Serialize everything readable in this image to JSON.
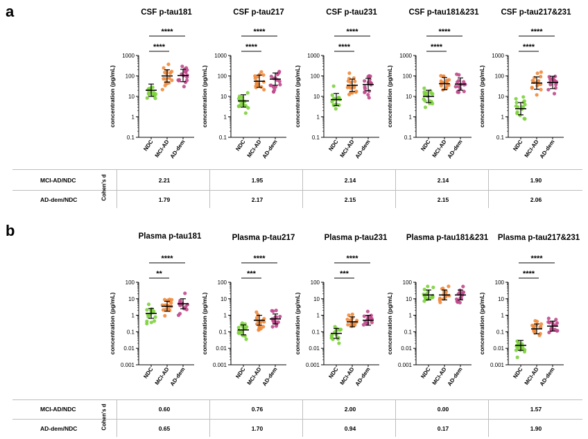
{
  "panels": [
    {
      "letter": "a"
    },
    {
      "letter": "b"
    }
  ],
  "cohens_d_label": "Cohen's d",
  "colors": {
    "NDC": "#7dd23c",
    "MCI-AD": "#f08a3c",
    "AD-dem": "#c04a8c"
  },
  "chart_data": [
    {
      "type": "scatter",
      "title": "CSF p-tau181",
      "ylabel": "concentration (pg/mL)",
      "yscale": "log",
      "ylim": [
        0.1,
        1000
      ],
      "ytick_labels": [
        "0.1",
        "1",
        "10",
        "100",
        "1000"
      ],
      "categories": [
        "NDC",
        "MCI-AD",
        "AD-dem"
      ],
      "medians": [
        20,
        100,
        105
      ],
      "sig": [
        {
          "from": "NDC",
          "to": "MCI-AD",
          "label": "****"
        },
        {
          "from": "NDC",
          "to": "AD-dem",
          "label": "****"
        }
      ]
    },
    {
      "type": "scatter",
      "title": "CSF p-tau217",
      "ylabel": "concentration (pg/mL)",
      "yscale": "log",
      "ylim": [
        0.1,
        1000
      ],
      "ytick_labels": [
        "0.1",
        "1",
        "10",
        "100",
        "1000"
      ],
      "categories": [
        "NDC",
        "MCI-AD",
        "AD-dem"
      ],
      "medians": [
        6,
        55,
        70
      ],
      "sig": [
        {
          "from": "NDC",
          "to": "MCI-AD",
          "label": "****"
        },
        {
          "from": "NDC",
          "to": "AD-dem",
          "label": "****"
        }
      ]
    },
    {
      "type": "scatter",
      "title": "CSF p-tau231",
      "ylabel": "concentration (pg/mL)",
      "yscale": "log",
      "ylim": [
        0.1,
        1000
      ],
      "ytick_labels": [
        "0.1",
        "1",
        "10",
        "100",
        "1000"
      ],
      "categories": [
        "NDC",
        "MCI-AD",
        "AD-dem"
      ],
      "medians": [
        7,
        35,
        38
      ],
      "sig": [
        {
          "from": "NDC",
          "to": "MCI-AD",
          "label": "****"
        },
        {
          "from": "NDC",
          "to": "AD-dem",
          "label": "****"
        }
      ]
    },
    {
      "type": "scatter",
      "title": "CSF p-tau181&231",
      "ylabel": "concentration (pg/mL)",
      "yscale": "log",
      "ylim": [
        0.1,
        1000
      ],
      "ytick_labels": [
        "0.1",
        "1",
        "10",
        "100",
        "1000"
      ],
      "categories": [
        "NDC",
        "MCI-AD",
        "AD-dem"
      ],
      "medians": [
        10,
        42,
        40
      ],
      "sig": [
        {
          "from": "NDC",
          "to": "MCI-AD",
          "label": "****"
        },
        {
          "from": "NDC",
          "to": "AD-dem",
          "label": "****"
        }
      ]
    },
    {
      "type": "scatter",
      "title": "CSF p-tau217&231",
      "ylabel": "concentration (pg/mL)",
      "yscale": "log",
      "ylim": [
        0.1,
        1000
      ],
      "ytick_labels": [
        "0.1",
        "1",
        "10",
        "100",
        "1000"
      ],
      "categories": [
        "NDC",
        "MCI-AD",
        "AD-dem"
      ],
      "medians": [
        2.5,
        45,
        48
      ],
      "sig": [
        {
          "from": "NDC",
          "to": "MCI-AD",
          "label": "****"
        },
        {
          "from": "NDC",
          "to": "AD-dem",
          "label": "****"
        }
      ]
    },
    {
      "type": "scatter",
      "title": "Plasma p-tau181",
      "ylabel": "concentration (pg/mL)",
      "yscale": "log",
      "ylim": [
        0.001,
        100
      ],
      "ytick_labels": [
        "0.001",
        "0.01",
        "0.1",
        "1",
        "10",
        "100"
      ],
      "categories": [
        "NDC",
        "MCI-AD",
        "AD-dem"
      ],
      "medians": [
        1.3,
        3.5,
        5
      ],
      "sig": [
        {
          "from": "NDC",
          "to": "MCI-AD",
          "label": "**"
        },
        {
          "from": "NDC",
          "to": "AD-dem",
          "label": "****"
        }
      ]
    },
    {
      "type": "scatter",
      "title": "Plasma p-tau217",
      "ylabel": "concentration (pg/mL)",
      "yscale": "log",
      "ylim": [
        0.001,
        100
      ],
      "ytick_labels": [
        "0.001",
        "0.01",
        "0.1",
        "1",
        "10",
        "100"
      ],
      "categories": [
        "NDC",
        "MCI-AD",
        "AD-dem"
      ],
      "medians": [
        0.13,
        0.5,
        0.6
      ],
      "sig": [
        {
          "from": "NDC",
          "to": "MCI-AD",
          "label": "***"
        },
        {
          "from": "NDC",
          "to": "AD-dem",
          "label": "****"
        }
      ]
    },
    {
      "type": "scatter",
      "title": "Plasma p-tau231",
      "ylabel": "concentration (pg/mL)",
      "yscale": "log",
      "ylim": [
        0.001,
        100
      ],
      "ytick_labels": [
        "0.001",
        "0.01",
        "0.1",
        "1",
        "10",
        "100"
      ],
      "categories": [
        "NDC",
        "MCI-AD",
        "AD-dem"
      ],
      "medians": [
        0.08,
        0.4,
        0.5
      ],
      "sig": [
        {
          "from": "NDC",
          "to": "MCI-AD",
          "label": "***"
        },
        {
          "from": "NDC",
          "to": "AD-dem",
          "label": "****"
        }
      ]
    },
    {
      "type": "scatter",
      "title": "Plasma p-tau181&231",
      "ylabel": "concentration (pg/mL)",
      "yscale": "log",
      "ylim": [
        0.001,
        100
      ],
      "ytick_labels": [
        "0.001",
        "0.01",
        "0.1",
        "1",
        "10",
        "100"
      ],
      "categories": [
        "NDC",
        "MCI-AD",
        "AD-dem"
      ],
      "medians": [
        17,
        17,
        17
      ],
      "sig": []
    },
    {
      "type": "scatter",
      "title": "Plasma p-tau217&231",
      "ylabel": "concentration (pg/mL)",
      "yscale": "log",
      "ylim": [
        0.001,
        100
      ],
      "ytick_labels": [
        "0.001",
        "0.01",
        "0.1",
        "1",
        "10",
        "100"
      ],
      "categories": [
        "NDC",
        "MCI-AD",
        "AD-dem"
      ],
      "medians": [
        0.015,
        0.15,
        0.22
      ],
      "sig": [
        {
          "from": "NDC",
          "to": "MCI-AD",
          "label": "****"
        },
        {
          "from": "NDC",
          "to": "AD-dem",
          "label": "****"
        }
      ]
    }
  ],
  "tables": [
    {
      "rows": [
        {
          "label": "MCI-AD/NDC",
          "values": [
            "2.21",
            "1.95",
            "2.14",
            "2.14",
            "1.90"
          ]
        },
        {
          "label": "AD-dem/NDC",
          "values": [
            "1.79",
            "2.17",
            "2.15",
            "2.15",
            "2.06"
          ]
        }
      ]
    },
    {
      "rows": [
        {
          "label": "MCI-AD/NDC",
          "values": [
            "0.60",
            "0.76",
            "2.00",
            "0.00",
            "1.57"
          ]
        },
        {
          "label": "AD-dem/NDC",
          "values": [
            "0.65",
            "1.70",
            "0.94",
            "0.17",
            "1.90"
          ]
        }
      ]
    }
  ]
}
